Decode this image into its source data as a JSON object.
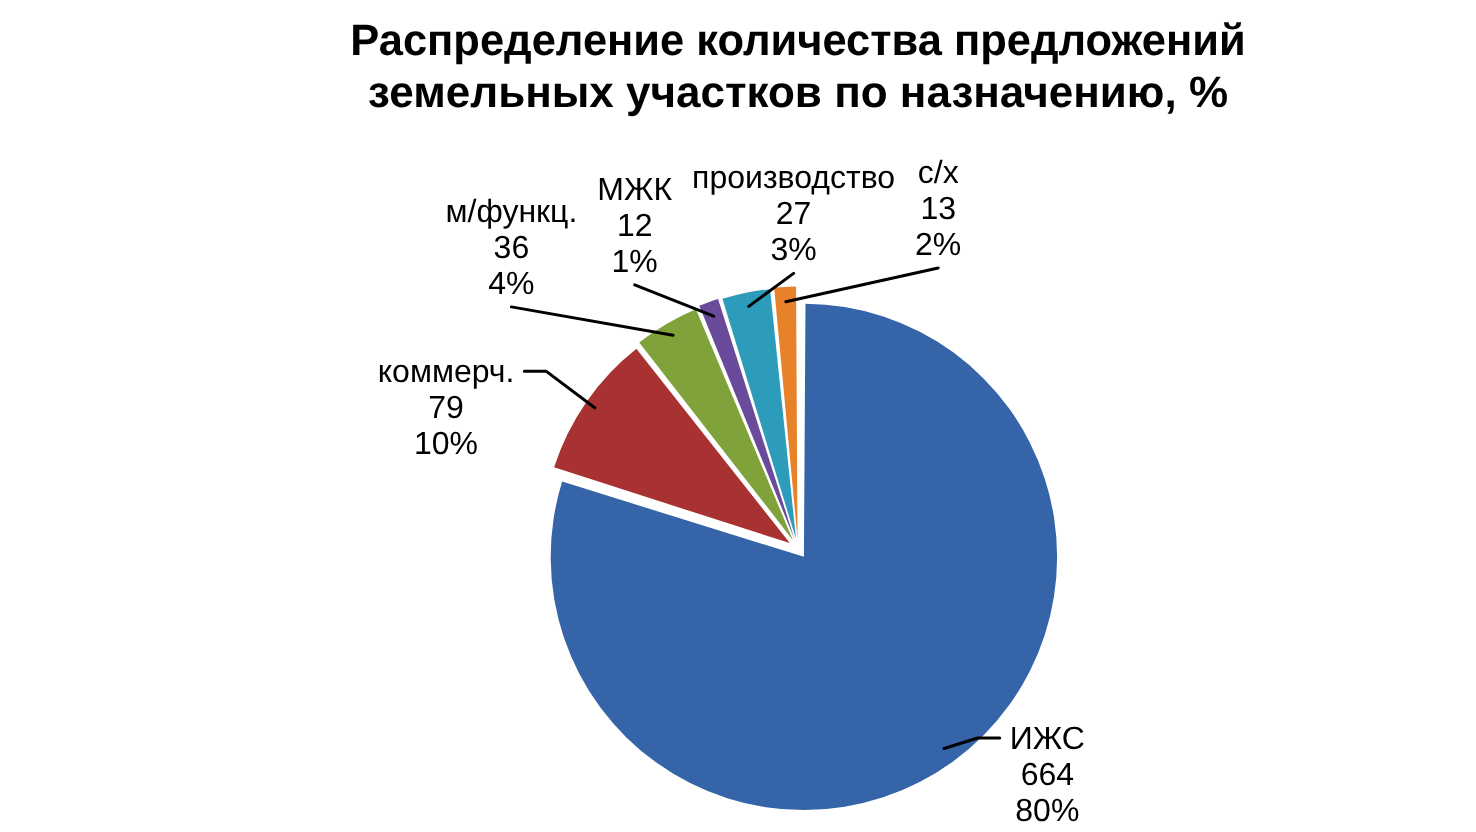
{
  "chart_data": {
    "type": "pie",
    "title": "Распределение количества предложений земельных участков по назначению, %",
    "categories": [
      "ИЖС",
      "коммерч.",
      "м/функц.",
      "МЖК",
      "производство",
      "с/х"
    ],
    "values": [
      664,
      79,
      36,
      12,
      27,
      13
    ],
    "colors": [
      "#3565a8",
      "#a83232",
      "#7fa23a",
      "#6a4a9a",
      "#2d9cba",
      "#e8822a"
    ],
    "value_labels": [
      "664\n80%",
      "79\n10%",
      "36\n4%",
      "12\n1%",
      "27\n3%",
      "13\n2%"
    ]
  }
}
